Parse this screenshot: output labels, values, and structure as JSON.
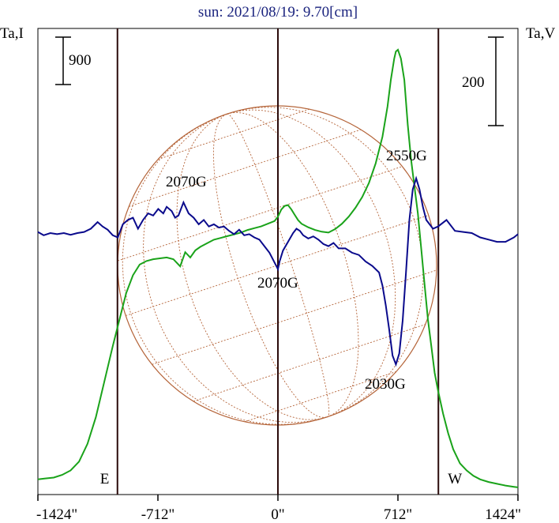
{
  "chart_data": {
    "type": "line",
    "title": "sun: 2021/08/19: 9.70[cm]",
    "left_axis_label": "Ta,I",
    "right_axis_label": "Ta,V",
    "left_scale_bar": "900",
    "right_scale_bar": "200",
    "x_ticks": [
      {
        "value": -1424,
        "label": "-1424\""
      },
      {
        "value": -712,
        "label": "-712\""
      },
      {
        "value": 0,
        "label": "0\""
      },
      {
        "value": 712,
        "label": "712\""
      },
      {
        "value": 1424,
        "label": "1424\""
      }
    ],
    "xlim": [
      -1424,
      1424
    ],
    "limb_markers": [
      {
        "x": -952,
        "label": "E"
      },
      {
        "x": 0,
        "label": ""
      },
      {
        "x": 952,
        "label": "W"
      }
    ],
    "annotations": [
      {
        "text": "2070G",
        "x": -580
      },
      {
        "text": "2070G",
        "x": 20
      },
      {
        "text": "2550G",
        "x": 790
      },
      {
        "text": "2030G",
        "x": 680
      }
    ],
    "series": [
      {
        "color": "#1aa31a",
        "x": [
          -1424,
          -1380,
          -1330,
          -1280,
          -1230,
          -1180,
          -1130,
          -1080,
          -1030,
          -980,
          -940,
          -900,
          -860,
          -820,
          -780,
          -740,
          -700,
          -660,
          -620,
          -580,
          -550,
          -520,
          -490,
          -460,
          -420,
          -380,
          -340,
          -300,
          -260,
          -220,
          -180,
          -140,
          -100,
          -60,
          -20,
          0,
          20,
          40,
          60,
          80,
          100,
          120,
          140,
          180,
          220,
          260,
          300,
          340,
          380,
          420,
          460,
          500,
          540,
          580,
          620,
          650,
          670,
          690,
          700,
          712,
          730,
          750,
          770,
          790,
          810,
          830,
          850,
          870,
          890,
          910,
          930,
          950,
          980,
          1010,
          1040,
          1080,
          1120,
          1160,
          1200,
          1250,
          1300,
          1350,
          1400,
          1424
        ],
        "y": [
          50,
          55,
          60,
          75,
          100,
          150,
          250,
          400,
          600,
          800,
          950,
          1100,
          1200,
          1260,
          1280,
          1290,
          1295,
          1300,
          1290,
          1250,
          1330,
          1300,
          1340,
          1360,
          1380,
          1400,
          1410,
          1420,
          1430,
          1440,
          1455,
          1465,
          1475,
          1490,
          1505,
          1530,
          1570,
          1590,
          1595,
          1570,
          1540,
          1510,
          1490,
          1470,
          1455,
          1445,
          1440,
          1460,
          1490,
          1530,
          1580,
          1640,
          1720,
          1830,
          1980,
          2150,
          2300,
          2420,
          2460,
          2470,
          2420,
          2300,
          2050,
          1850,
          1700,
          1550,
          1350,
          1150,
          950,
          800,
          650,
          550,
          420,
          310,
          220,
          140,
          100,
          70,
          50,
          35,
          25,
          15,
          8,
          5
        ]
      },
      {
        "color": "#0a0a8c",
        "x": [
          -1424,
          -1390,
          -1350,
          -1310,
          -1270,
          -1230,
          -1190,
          -1150,
          -1110,
          -1070,
          -1040,
          -1010,
          -980,
          -950,
          -920,
          -890,
          -860,
          -830,
          -800,
          -770,
          -740,
          -710,
          -680,
          -660,
          -630,
          -610,
          -590,
          -560,
          -530,
          -500,
          -470,
          -440,
          -410,
          -380,
          -350,
          -320,
          -290,
          -260,
          -230,
          -200,
          -170,
          -140,
          -110,
          -80,
          -50,
          -30,
          -10,
          0,
          10,
          30,
          60,
          90,
          110,
          130,
          150,
          180,
          210,
          240,
          270,
          300,
          330,
          360,
          400,
          440,
          480,
          520,
          560,
          600,
          620,
          640,
          660,
          680,
          700,
          720,
          740,
          760,
          780,
          800,
          820,
          840,
          860,
          880,
          900,
          920,
          950,
          1000,
          1050,
          1100,
          1150,
          1200,
          1250,
          1300,
          1350,
          1400,
          1424
        ],
        "y": [
          5,
          -10,
          0,
          -5,
          0,
          -8,
          0,
          5,
          20,
          50,
          30,
          15,
          -10,
          -20,
          40,
          60,
          70,
          20,
          60,
          90,
          80,
          110,
          90,
          120,
          100,
          70,
          80,
          140,
          90,
          70,
          40,
          60,
          30,
          40,
          25,
          30,
          10,
          -5,
          15,
          -10,
          -5,
          -20,
          -30,
          -60,
          -90,
          -120,
          -150,
          -165,
          -130,
          -80,
          -40,
          0,
          20,
          10,
          -10,
          -25,
          -15,
          -30,
          -50,
          -60,
          -45,
          -70,
          -70,
          -90,
          -100,
          -130,
          -150,
          -180,
          -240,
          -330,
          -440,
          -560,
          -600,
          -550,
          -400,
          -180,
          60,
          200,
          250,
          200,
          120,
          60,
          40,
          20,
          30,
          60,
          10,
          5,
          0,
          -20,
          -30,
          -40,
          -40,
          -20,
          -5
        ]
      }
    ]
  }
}
